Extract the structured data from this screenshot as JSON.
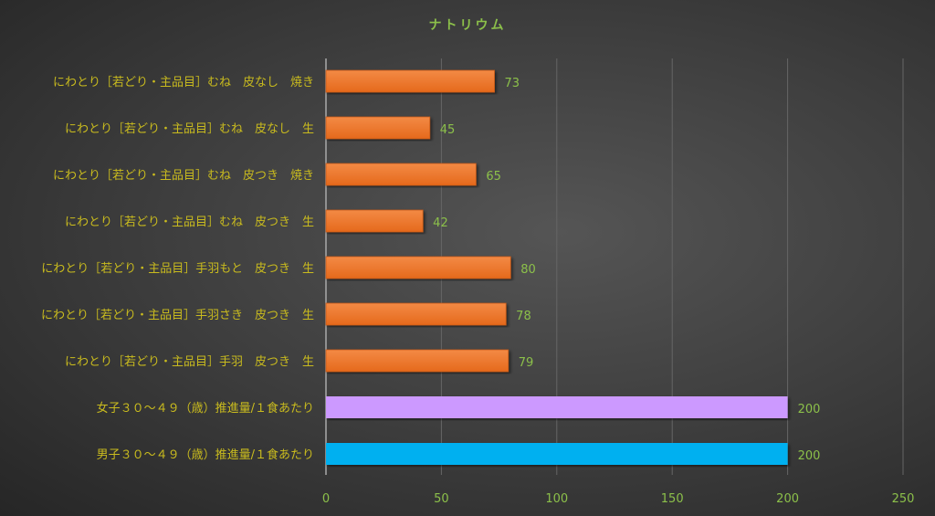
{
  "chart_data": {
    "type": "bar",
    "orientation": "horizontal",
    "title": "ナトリウム",
    "categories": [
      "にわとり［若どり・主品目］むね　皮なし　焼き",
      "にわとり［若どり・主品目］むね　皮なし　生",
      "にわとり［若どり・主品目］むね　皮つき　焼き",
      "にわとり［若どり・主品目］むね　皮つき　生",
      "にわとり［若どり・主品目］手羽もと　皮つき　生",
      "にわとり［若どり・主品目］手羽さき　皮つき　生",
      "にわとり［若どり・主品目］手羽　皮つき　生",
      "女子３０～４９（歳）推進量/１食あたり",
      "男子３０～４９（歳）推進量/１食あたり"
    ],
    "values": [
      73,
      45,
      65,
      42,
      80,
      78,
      79,
      200,
      200
    ],
    "colors": [
      "#ee7428",
      "#ee7428",
      "#ee7428",
      "#ee7428",
      "#ee7428",
      "#ee7428",
      "#ee7428",
      "#cc99ff",
      "#00b0f0"
    ],
    "xlim": [
      0,
      250
    ],
    "xticks": [
      "0",
      "50",
      "100",
      "150",
      "200",
      "250"
    ],
    "grid": true,
    "data_labels": true
  }
}
